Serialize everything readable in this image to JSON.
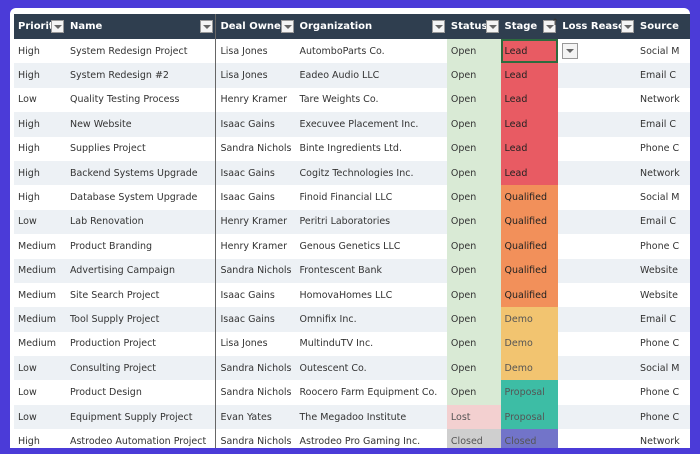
{
  "columns": [
    "Priority",
    "Name",
    "Deal Owner",
    "Organization",
    "Status",
    "Stage",
    "Loss Reason",
    "Source"
  ],
  "colors": {
    "frame": "#4b3bd8",
    "header": "#2f3e4f",
    "stage": {
      "Lead": "#e85b63",
      "Qualified": "#f2905a",
      "Demo": "#f2c470",
      "Proposal": "#3dbda5",
      "Closed": "#7274c9"
    },
    "status": {
      "Open": "#d9ead5",
      "Lost": "#f3d0d0",
      "Closed": "#cfcfcf"
    }
  },
  "rows": [
    [
      "High",
      "System Redesign Project",
      "Lisa Jones",
      "AutomboParts Co.",
      "Open",
      "Lead",
      "",
      "Social M"
    ],
    [
      "High",
      "System Redesign #2",
      "Lisa Jones",
      "Eadeo Audio LLC",
      "Open",
      "Lead",
      "",
      "Email C"
    ],
    [
      "Low",
      "Quality Testing Process",
      "Henry Kramer",
      "Tare Weights Co.",
      "Open",
      "Lead",
      "",
      "Network"
    ],
    [
      "High",
      "New Website",
      "Isaac Gains",
      "Execuvee Placement Inc.",
      "Open",
      "Lead",
      "",
      "Email C"
    ],
    [
      "High",
      "Supplies Project",
      "Sandra Nichols",
      "Binte Ingredients Ltd.",
      "Open",
      "Lead",
      "",
      "Phone C"
    ],
    [
      "High",
      "Backend Systems Upgrade",
      "Isaac Gains",
      "Cogitz Technologies Inc.",
      "Open",
      "Lead",
      "",
      "Network"
    ],
    [
      "High",
      "Database System Upgrade",
      "Isaac Gains",
      "Finoid Financial LLC",
      "Open",
      "Qualified",
      "",
      "Social M"
    ],
    [
      "Low",
      "Lab Renovation",
      "Henry Kramer",
      "Peritri Laboratories",
      "Open",
      "Qualified",
      "",
      "Email C"
    ],
    [
      "Medium",
      "Product Branding",
      "Henry Kramer",
      "Genous Genetics LLC",
      "Open",
      "Qualified",
      "",
      "Phone C"
    ],
    [
      "Medium",
      "Advertising Campaign",
      "Sandra Nichols",
      "Frontescent Bank",
      "Open",
      "Qualified",
      "",
      "Website"
    ],
    [
      "Medium",
      "Site Search Project",
      "Isaac Gains",
      "HomovaHomes LLC",
      "Open",
      "Qualified",
      "",
      "Website"
    ],
    [
      "Medium",
      "Tool Supply Project",
      "Isaac Gains",
      "Omnifix Inc.",
      "Open",
      "Demo",
      "",
      "Email C"
    ],
    [
      "Medium",
      "Production Project",
      "Lisa Jones",
      "MultinduTV Inc.",
      "Open",
      "Demo",
      "",
      "Phone C"
    ],
    [
      "Low",
      "Consulting Project",
      "Sandra Nichols",
      "Outescent Co.",
      "Open",
      "Demo",
      "",
      "Social M"
    ],
    [
      "Low",
      "Product Design",
      "Sandra Nichols",
      "Roocero Farm Equipment Co.",
      "Open",
      "Proposal",
      "",
      "Phone C"
    ],
    [
      "Low",
      "Equipment Supply Project",
      "Evan Yates",
      "The Megadoo Institute",
      "Lost",
      "Proposal",
      "",
      "Phone C"
    ],
    [
      "High",
      "Astrodeo Automation Project",
      "Sandra Nichols",
      "Astrodeo Pro Gaming Inc.",
      "Closed",
      "Closed",
      "",
      "Network"
    ]
  ]
}
